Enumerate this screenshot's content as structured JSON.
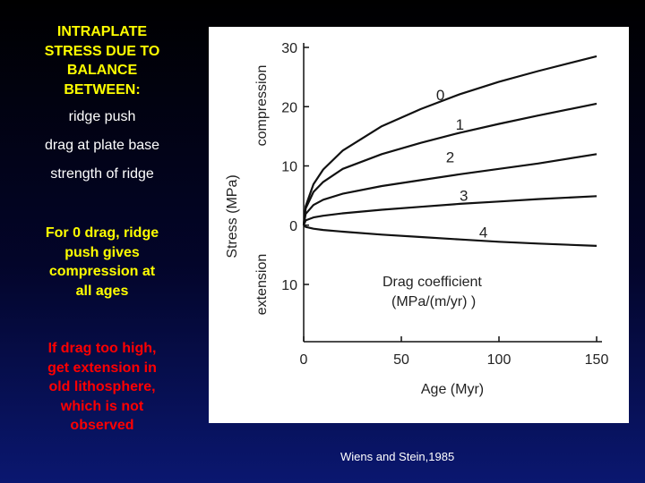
{
  "sidebar": {
    "title": [
      "INTRAPLATE",
      "STRESS DUE TO",
      "BALANCE",
      "BETWEEN:"
    ],
    "factors": [
      "ridge push",
      "drag at plate base",
      "strength of ridge"
    ],
    "note_zero_drag": [
      "For 0 drag,  ridge",
      "push gives",
      "compression at",
      "all ages"
    ],
    "note_high_drag": [
      "If drag too high,",
      "get extension in",
      "old lithosphere,",
      "which is not",
      "observed"
    ]
  },
  "citation": "Wiens and Stein,1985",
  "chart_data": {
    "type": "line",
    "xlabel": "Age (Myr)",
    "ylabel": "Stress (MPa)",
    "ylabel_upper": "compression",
    "ylabel_lower": "extension",
    "xlim": [
      0,
      150
    ],
    "ylim": [
      -10,
      30
    ],
    "x_ticks": [
      0,
      50,
      100,
      150
    ],
    "y_ticks": [
      {
        "value": 30,
        "label": "30"
      },
      {
        "value": 20,
        "label": "20"
      },
      {
        "value": 10,
        "label": "10"
      },
      {
        "value": 0,
        "label": "0"
      },
      {
        "value": -10,
        "label": "10"
      }
    ],
    "legend_title": [
      "Drag coefficient",
      "(MPa/(m/yr) )"
    ],
    "legend_placement": "lower-right",
    "grid": false,
    "line_color": "#111111",
    "series": [
      {
        "name": "0",
        "x": [
          0,
          1,
          5,
          10,
          20,
          40,
          60,
          80,
          100,
          120,
          150
        ],
        "y": [
          0,
          3.2,
          6.9,
          9.4,
          12.6,
          16.7,
          19.6,
          22.1,
          24.2,
          26.0,
          28.5
        ],
        "label_at": [
          70,
          22
        ]
      },
      {
        "name": "1",
        "x": [
          0,
          1,
          5,
          10,
          20,
          40,
          60,
          80,
          100,
          120,
          150
        ],
        "y": [
          0,
          2.8,
          5.6,
          7.3,
          9.5,
          12.0,
          13.9,
          15.6,
          17.1,
          18.5,
          20.5
        ],
        "label_at": [
          80,
          17
        ]
      },
      {
        "name": "2",
        "x": [
          0,
          1,
          5,
          10,
          20,
          40,
          60,
          80,
          100,
          120,
          150
        ],
        "y": [
          0,
          1.9,
          3.4,
          4.3,
          5.3,
          6.6,
          7.6,
          8.6,
          9.5,
          10.4,
          12.0
        ],
        "label_at": [
          75,
          11.5
        ]
      },
      {
        "name": "3",
        "x": [
          0,
          1,
          5,
          10,
          20,
          40,
          60,
          80,
          100,
          120,
          150
        ],
        "y": [
          0,
          0.8,
          1.3,
          1.6,
          2.0,
          2.6,
          3.1,
          3.6,
          4.0,
          4.4,
          4.9
        ],
        "label_at": [
          82,
          5
        ]
      },
      {
        "name": "4",
        "x": [
          0,
          1,
          5,
          10,
          20,
          40,
          60,
          80,
          100,
          120,
          150
        ],
        "y": [
          0,
          -0.3,
          -0.6,
          -0.8,
          -1.1,
          -1.6,
          -2.0,
          -2.4,
          -2.8,
          -3.1,
          -3.5
        ],
        "label_at": [
          92,
          -1.2
        ]
      }
    ]
  }
}
